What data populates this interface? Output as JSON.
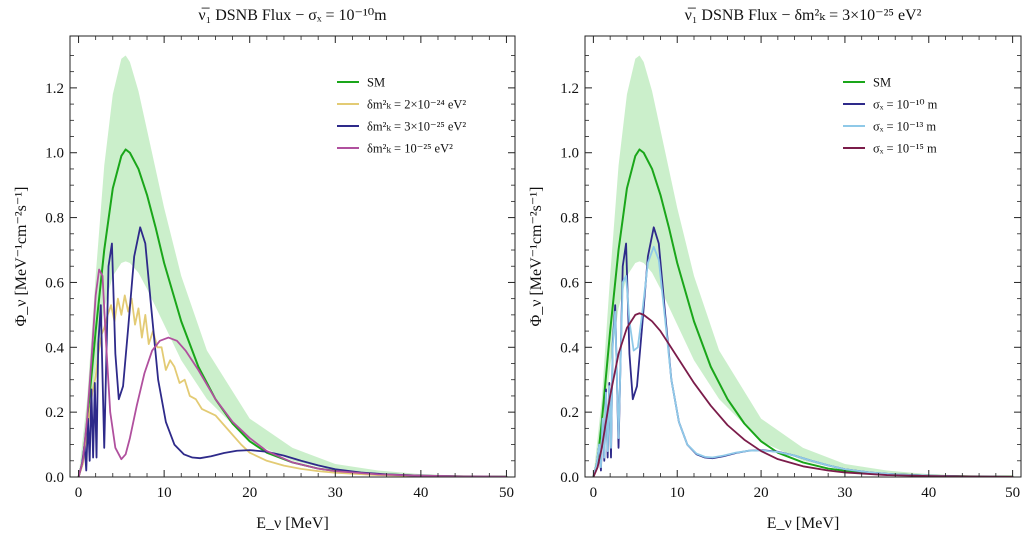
{
  "chart_data": [
    {
      "type": "line",
      "title": "ν̅₁ DSNB Flux − σₓ = 10⁻¹⁰m",
      "xlabel": "E_ν [MeV]",
      "ylabel": "Φ_ν [MeV⁻¹cm⁻²s⁻¹]",
      "xlim": [
        -1,
        51
      ],
      "ylim": [
        0,
        1.36
      ],
      "xticks": [
        "0",
        "10",
        "20",
        "30",
        "40",
        "50"
      ],
      "yticks": [
        "0.0",
        "0.2",
        "0.4",
        "0.6",
        "0.8",
        "1.0",
        "1.2"
      ],
      "legend_position": "top-right",
      "band": {
        "color": "#b9e9b9",
        "x": [
          0,
          1,
          2,
          3,
          4,
          5,
          5.5,
          6,
          7,
          8,
          10,
          12,
          15,
          20,
          25,
          30,
          35,
          40,
          45,
          50
        ],
        "lower": [
          0,
          0.12,
          0.34,
          0.52,
          0.62,
          0.66,
          0.665,
          0.66,
          0.63,
          0.58,
          0.47,
          0.36,
          0.24,
          0.11,
          0.05,
          0.02,
          0.009,
          0.004,
          0.002,
          0.001
        ],
        "upper": [
          0,
          0.24,
          0.62,
          0.96,
          1.18,
          1.29,
          1.3,
          1.28,
          1.19,
          1.07,
          0.83,
          0.62,
          0.39,
          0.18,
          0.09,
          0.04,
          0.02,
          0.009,
          0.004,
          0.002
        ]
      },
      "series": [
        {
          "name": "SM",
          "color": "#1aa61a",
          "x": [
            0,
            0.5,
            1,
            1.5,
            2,
            3,
            4,
            5,
            5.5,
            6,
            7,
            8,
            9,
            10,
            12,
            14,
            16,
            18,
            20,
            22,
            25,
            28,
            30,
            35,
            40,
            45,
            50
          ],
          "y": [
            0,
            0.05,
            0.17,
            0.31,
            0.45,
            0.7,
            0.89,
            0.99,
            1.01,
            1.0,
            0.95,
            0.87,
            0.77,
            0.66,
            0.48,
            0.34,
            0.24,
            0.165,
            0.11,
            0.075,
            0.045,
            0.026,
            0.019,
            0.009,
            0.004,
            0.002,
            0.001
          ]
        },
        {
          "name": "δm²ₖ = 2×10⁻²⁴ eV²",
          "color": "#e3cb74",
          "x": [
            0,
            0.5,
            1,
            1.3,
            1.6,
            2,
            2.3,
            2.7,
            3,
            3.4,
            3.8,
            4.2,
            4.6,
            5,
            5.4,
            5.8,
            6.2,
            6.6,
            7,
            7.4,
            7.8,
            8.2,
            8.7,
            9.2,
            9.7,
            10.2,
            10.7,
            11.2,
            11.8,
            12.4,
            13,
            13.7,
            14.4,
            15.2,
            16,
            17,
            18,
            19,
            20,
            22,
            24,
            26,
            28,
            30,
            35,
            40,
            45,
            50
          ],
          "y": [
            0,
            0.04,
            0.14,
            0.2,
            0.26,
            0.31,
            0.38,
            0.44,
            0.46,
            0.5,
            0.53,
            0.48,
            0.55,
            0.5,
            0.56,
            0.51,
            0.55,
            0.47,
            0.52,
            0.43,
            0.5,
            0.41,
            0.45,
            0.4,
            0.4,
            0.33,
            0.36,
            0.34,
            0.29,
            0.3,
            0.25,
            0.24,
            0.21,
            0.2,
            0.19,
            0.16,
            0.13,
            0.1,
            0.075,
            0.05,
            0.035,
            0.025,
            0.018,
            0.013,
            0.006,
            0.003,
            0.001,
            0.0005
          ]
        },
        {
          "name": "δm²ₖ = 3×10⁻²⁵ eV²",
          "color": "#2e2a8a",
          "x": [
            0,
            0.4,
            0.7,
            0.9,
            1.1,
            1.3,
            1.5,
            1.7,
            1.9,
            2.1,
            2.3,
            2.6,
            3.0,
            3.5,
            3.9,
            4.3,
            4.7,
            5.2,
            5.8,
            6.5,
            7.2,
            7.8,
            8.5,
            9.3,
            10.2,
            11.2,
            12.3,
            13.3,
            14.2,
            15.5,
            17,
            18.5,
            20,
            22,
            24,
            26,
            28,
            30,
            33,
            36,
            40,
            45,
            50
          ],
          "y": [
            0,
            0.04,
            0.1,
            0.02,
            0.18,
            0.05,
            0.27,
            0.06,
            0.29,
            0.06,
            0.41,
            0.53,
            0.09,
            0.65,
            0.72,
            0.38,
            0.24,
            0.28,
            0.46,
            0.68,
            0.77,
            0.72,
            0.52,
            0.3,
            0.17,
            0.1,
            0.07,
            0.06,
            0.058,
            0.064,
            0.074,
            0.081,
            0.083,
            0.078,
            0.066,
            0.05,
            0.036,
            0.024,
            0.014,
            0.008,
            0.004,
            0.0015,
            0.0005
          ]
        },
        {
          "name": "δm²ₖ = 10⁻²⁵ eV²",
          "color": "#b0509e",
          "x": [
            0,
            0.5,
            1,
            1.5,
            2,
            2.4,
            2.8,
            3.2,
            3.7,
            4.3,
            5,
            5.5,
            6,
            6.8,
            7.7,
            8.6,
            9.5,
            10.5,
            11.5,
            12.5,
            14,
            16,
            18,
            20,
            22,
            25,
            28,
            30,
            35,
            40,
            45,
            50
          ],
          "y": [
            0,
            0.05,
            0.18,
            0.36,
            0.56,
            0.64,
            0.62,
            0.42,
            0.2,
            0.09,
            0.055,
            0.07,
            0.12,
            0.22,
            0.32,
            0.39,
            0.42,
            0.43,
            0.42,
            0.39,
            0.33,
            0.24,
            0.17,
            0.12,
            0.08,
            0.045,
            0.026,
            0.018,
            0.008,
            0.004,
            0.002,
            0.001
          ]
        }
      ]
    },
    {
      "type": "line",
      "title": "ν̅₁ DSNB Flux − δm²ₖ = 3×10⁻²⁵ eV²",
      "xlabel": "E_ν [MeV]",
      "ylabel": "Φ_ν [MeV⁻¹cm⁻²s⁻¹]",
      "xlim": [
        -1,
        51
      ],
      "ylim": [
        0,
        1.36
      ],
      "xticks": [
        "0",
        "10",
        "20",
        "30",
        "40",
        "50"
      ],
      "yticks": [
        "0.0",
        "0.2",
        "0.4",
        "0.6",
        "0.8",
        "1.0",
        "1.2"
      ],
      "legend_position": "top-right",
      "band": {
        "color": "#b9e9b9",
        "x": [
          0,
          1,
          2,
          3,
          4,
          5,
          5.5,
          6,
          7,
          8,
          10,
          12,
          15,
          20,
          25,
          30,
          35,
          40,
          45,
          50
        ],
        "lower": [
          0,
          0.12,
          0.34,
          0.52,
          0.62,
          0.66,
          0.665,
          0.66,
          0.63,
          0.58,
          0.47,
          0.36,
          0.24,
          0.11,
          0.05,
          0.02,
          0.009,
          0.004,
          0.002,
          0.001
        ],
        "upper": [
          0,
          0.24,
          0.62,
          0.96,
          1.18,
          1.29,
          1.3,
          1.28,
          1.19,
          1.07,
          0.83,
          0.62,
          0.39,
          0.18,
          0.09,
          0.04,
          0.02,
          0.009,
          0.004,
          0.002
        ]
      },
      "series": [
        {
          "name": "SM",
          "color": "#1aa61a",
          "x": [
            0,
            0.5,
            1,
            1.5,
            2,
            3,
            4,
            5,
            5.5,
            6,
            7,
            8,
            9,
            10,
            12,
            14,
            16,
            18,
            20,
            22,
            25,
            28,
            30,
            35,
            40,
            45,
            50
          ],
          "y": [
            0,
            0.05,
            0.17,
            0.31,
            0.45,
            0.7,
            0.89,
            0.99,
            1.01,
            1.0,
            0.95,
            0.87,
            0.77,
            0.66,
            0.48,
            0.34,
            0.24,
            0.165,
            0.11,
            0.075,
            0.045,
            0.026,
            0.019,
            0.009,
            0.004,
            0.002,
            0.001
          ]
        },
        {
          "name": "σₓ = 10⁻¹⁰ m",
          "color": "#2e2a8a",
          "x": [
            0,
            0.4,
            0.7,
            0.9,
            1.1,
            1.3,
            1.5,
            1.7,
            1.9,
            2.1,
            2.3,
            2.6,
            3.0,
            3.5,
            3.9,
            4.3,
            4.7,
            5.2,
            5.8,
            6.5,
            7.2,
            7.8,
            8.5,
            9.3,
            10.2,
            11.2,
            12.3,
            13.3,
            14.2,
            15.5,
            17,
            18.5,
            20,
            22,
            24,
            26,
            28,
            30,
            33,
            36,
            40,
            45,
            50
          ],
          "y": [
            0,
            0.04,
            0.1,
            0.02,
            0.18,
            0.05,
            0.27,
            0.06,
            0.29,
            0.06,
            0.41,
            0.53,
            0.09,
            0.65,
            0.72,
            0.38,
            0.24,
            0.28,
            0.46,
            0.68,
            0.77,
            0.72,
            0.52,
            0.3,
            0.17,
            0.1,
            0.07,
            0.06,
            0.058,
            0.064,
            0.074,
            0.081,
            0.083,
            0.078,
            0.066,
            0.05,
            0.036,
            0.024,
            0.014,
            0.008,
            0.004,
            0.0015,
            0.0005
          ]
        },
        {
          "name": "σₓ = 10⁻¹³ m",
          "color": "#8fc9e8",
          "x": [
            0,
            0.4,
            0.7,
            0.9,
            1.1,
            1.3,
            1.5,
            1.7,
            1.9,
            2.1,
            2.3,
            2.6,
            3.0,
            3.5,
            3.9,
            4.3,
            4.8,
            5.3,
            5.8,
            6.5,
            7.2,
            7.8,
            8.5,
            9.3,
            10.2,
            11.2,
            12.3,
            13.3,
            14.2,
            15.5,
            17,
            18.5,
            20,
            22,
            24,
            26,
            28,
            30,
            33,
            36,
            40,
            45,
            50
          ],
          "y": [
            0,
            0.04,
            0.1,
            0.03,
            0.18,
            0.06,
            0.26,
            0.08,
            0.28,
            0.09,
            0.4,
            0.51,
            0.12,
            0.6,
            0.62,
            0.48,
            0.39,
            0.4,
            0.5,
            0.66,
            0.71,
            0.67,
            0.5,
            0.3,
            0.17,
            0.1,
            0.072,
            0.062,
            0.06,
            0.066,
            0.075,
            0.081,
            0.082,
            0.077,
            0.066,
            0.05,
            0.036,
            0.024,
            0.014,
            0.008,
            0.004,
            0.0015,
            0.0005
          ]
        },
        {
          "name": "σₓ = 10⁻¹⁵ m",
          "color": "#7b1c4a",
          "x": [
            0,
            0.5,
            1,
            1.5,
            2,
            3,
            4,
            5,
            5.5,
            6,
            7,
            8,
            9,
            10,
            12,
            14,
            16,
            18,
            20,
            22,
            25,
            28,
            30,
            35,
            40,
            45,
            50
          ],
          "y": [
            0,
            0.03,
            0.09,
            0.17,
            0.25,
            0.38,
            0.46,
            0.5,
            0.505,
            0.5,
            0.48,
            0.45,
            0.41,
            0.37,
            0.29,
            0.22,
            0.16,
            0.115,
            0.08,
            0.055,
            0.033,
            0.02,
            0.014,
            0.006,
            0.003,
            0.0015,
            0.0007
          ]
        }
      ]
    }
  ]
}
